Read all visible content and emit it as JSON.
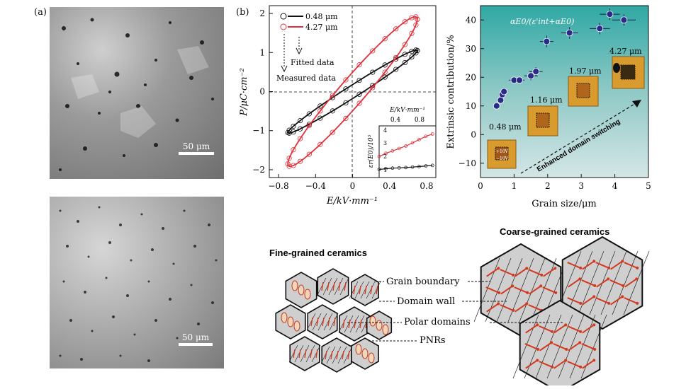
{
  "panel_a": {
    "label": "(a)",
    "top_image": {
      "scale_label": "50 μm"
    },
    "bottom_image": {
      "scale_label": "50 μm"
    }
  },
  "panel_b": {
    "label": "(b)",
    "legend": [
      "0.48 μm",
      "4.27 μm"
    ],
    "annotation_fitted": "Fitted data",
    "annotation_measured": "Measured data",
    "xlabel": "E/kV·mm⁻¹",
    "ylabel": "P/μC·cm⁻²",
    "xticks": [
      "−0.8",
      "−0.4",
      "0",
      "0.4",
      "0.8"
    ],
    "yticks": [
      "2",
      "1",
      "0",
      "−1",
      "−2"
    ],
    "inset": {
      "xlabel": "E/kV·mm⁻¹",
      "ylabel": "εr(E0)/10³",
      "xticks": [
        "0.4",
        "0.8"
      ],
      "yticks": [
        "4",
        "3",
        "2",
        "1"
      ]
    }
  },
  "panel_c": {
    "formula": "αE0/(ε'int+αE0)",
    "ylabel": "Extrinsic contribution/%",
    "xlabel": "Grain size/μm",
    "xticks": [
      "0",
      "1",
      "2",
      "3",
      "4",
      "5"
    ],
    "yticks": [
      "40",
      "30",
      "20",
      "10",
      "0",
      "−10"
    ],
    "sizes": [
      "0.48 μm",
      "1.16 μm",
      "1.97 μm",
      "4.27 μm"
    ],
    "arrow_label": "Enhanced domain switching",
    "pfm_labels": [
      "+10V",
      "−10V"
    ]
  },
  "chart_data": [
    {
      "type": "line",
      "xlabel": "E/kV·mm⁻¹",
      "ylabel": "P/μC·cm⁻²",
      "xlim": [
        -0.9,
        0.9
      ],
      "ylim": [
        -2.2,
        2.2
      ],
      "series": [
        {
          "name": "0.48 μm",
          "color": "#111111",
          "Emax": 0.7,
          "Pmax": 1.05,
          "Pr": 0.2
        },
        {
          "name": "4.27 μm",
          "color": "#e0303a",
          "Emax": 0.7,
          "Pmax": 1.85,
          "Pr": 0.55
        }
      ]
    },
    {
      "type": "line",
      "xlabel": "E/kV·mm⁻¹",
      "ylabel": "εr(E0)/10³",
      "xlim": [
        0.1,
        0.95
      ],
      "ylim": [
        0.9,
        4.1
      ],
      "series": [
        {
          "name": "",
          "color": "#e0303a",
          "x": [
            0.1,
            0.2,
            0.3,
            0.4,
            0.5,
            0.6,
            0.7,
            0.8,
            0.9
          ],
          "y": [
            2.2,
            2.4,
            2.55,
            2.7,
            2.85,
            3.05,
            3.25,
            3.45,
            3.6
          ]
        },
        {
          "name": "",
          "color": "#111111",
          "x": [
            0.1,
            0.2,
            0.3,
            0.4,
            0.5,
            0.6,
            0.7,
            0.8,
            0.9
          ],
          "y": [
            1.4,
            1.45,
            1.48,
            1.5,
            1.52,
            1.55,
            1.58,
            1.62,
            1.65
          ]
        }
      ]
    },
    {
      "type": "scatter",
      "xlabel": "Grain size/μm",
      "ylabel": "Extrinsic contribution/%",
      "xlim": [
        0,
        5
      ],
      "ylim": [
        -15,
        45
      ],
      "points": [
        {
          "x": 0.48,
          "y": 10,
          "xerr": 0.1,
          "yerr": 1
        },
        {
          "x": 0.6,
          "y": 12,
          "xerr": 0.1,
          "yerr": 1
        },
        {
          "x": 0.65,
          "y": 14,
          "xerr": 0.1,
          "yerr": 1
        },
        {
          "x": 0.7,
          "y": 15,
          "xerr": 0.1,
          "yerr": 1
        },
        {
          "x": 1.0,
          "y": 19,
          "xerr": 0.15,
          "yerr": 1
        },
        {
          "x": 1.16,
          "y": 19,
          "xerr": 0.15,
          "yerr": 1
        },
        {
          "x": 1.5,
          "y": 20.5,
          "xerr": 0.2,
          "yerr": 1.5
        },
        {
          "x": 1.65,
          "y": 22,
          "xerr": 0.2,
          "yerr": 1.5
        },
        {
          "x": 1.97,
          "y": 32.5,
          "xerr": 0.2,
          "yerr": 2
        },
        {
          "x": 2.65,
          "y": 35.5,
          "xerr": 0.25,
          "yerr": 2
        },
        {
          "x": 3.55,
          "y": 37,
          "xerr": 0.3,
          "yerr": 2
        },
        {
          "x": 3.85,
          "y": 42,
          "xerr": 0.3,
          "yerr": 2
        },
        {
          "x": 4.27,
          "y": 40,
          "xerr": 0.35,
          "yerr": 2
        }
      ]
    }
  ],
  "panel_d": {
    "fine_title": "Fine-grained ceramics",
    "coarse_title": "Coarse-grained ceramics",
    "labels": [
      "Grain boundary",
      "Domain wall",
      "Polar domains",
      "PNRs"
    ]
  }
}
